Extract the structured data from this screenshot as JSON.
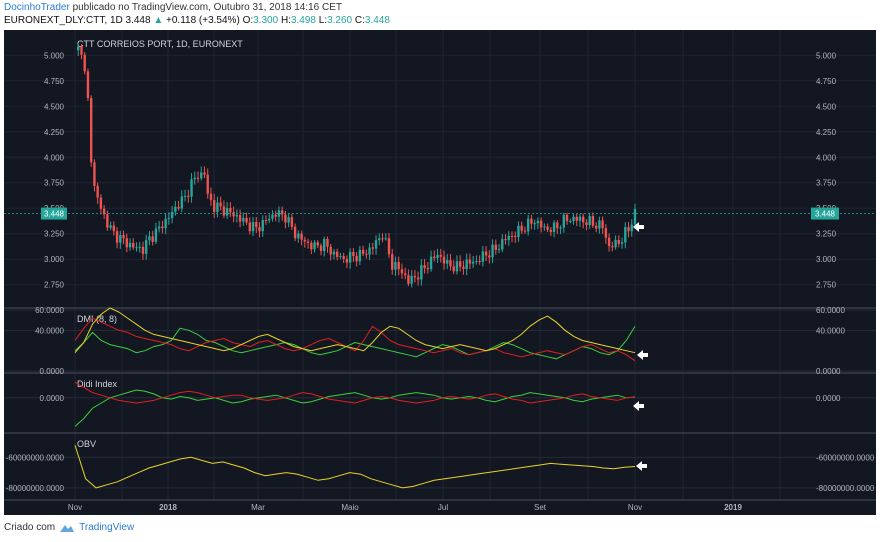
{
  "header": {
    "author": "DocinhoTrader",
    "published_text": "publicado no TradingView.com, Outubro 31, 2018 14:16 CET",
    "symbol": "EURONEXT_DLY:CTT, 1D",
    "last": "3.448",
    "change": "+0.118 (+3.54%)",
    "o_label": "O:",
    "o": "3.300",
    "h_label": "H:",
    "h": "3.498",
    "l_label": "L:",
    "l": "3.260",
    "c_label": "C:",
    "c": "3.448"
  },
  "footer": {
    "created_with": "Criado com",
    "brand": "TradingView"
  },
  "colors": {
    "background": "#131722",
    "up": "#26a69a",
    "down": "#ef5350",
    "green_line": "#3bd13b",
    "red_line": "#e02020",
    "yellow_line": "#e8d32a",
    "axis_text": "#b2b5be"
  },
  "chart_data": [
    {
      "type": "candlestick",
      "title": "CTT CORREIOS PORT, 1D, EURONEXT",
      "ylim": [
        2.6,
        5.15
      ],
      "y_ticks": [
        "2.750",
        "3.000",
        "3.250",
        "3.500",
        "3.750",
        "4.000",
        "4.250",
        "4.500",
        "4.750",
        "5.000"
      ],
      "x_ticks": [
        "Nov",
        "2018",
        "Mar",
        "Maio",
        "Jul",
        "Set",
        "Nov",
        "2019"
      ],
      "last_price_label": "3.448",
      "close_path": [
        [
          0,
          5.05
        ],
        [
          2,
          5.07
        ],
        [
          4,
          4.55
        ],
        [
          5,
          4.0
        ],
        [
          6,
          3.7
        ],
        [
          8,
          3.5
        ],
        [
          10,
          3.35
        ],
        [
          12,
          3.25
        ],
        [
          15,
          3.18
        ],
        [
          18,
          3.12
        ],
        [
          21,
          3.1
        ],
        [
          23,
          3.2
        ],
        [
          26,
          3.3
        ],
        [
          28,
          3.38
        ],
        [
          30,
          3.45
        ],
        [
          32,
          3.55
        ],
        [
          34,
          3.6
        ],
        [
          36,
          3.75
        ],
        [
          38,
          3.82
        ],
        [
          40,
          3.85
        ],
        [
          41,
          3.62
        ],
        [
          43,
          3.52
        ],
        [
          45,
          3.5
        ],
        [
          47,
          3.47
        ],
        [
          50,
          3.42
        ],
        [
          53,
          3.35
        ],
        [
          56,
          3.3
        ],
        [
          59,
          3.38
        ],
        [
          62,
          3.45
        ],
        [
          65,
          3.42
        ],
        [
          68,
          3.25
        ],
        [
          71,
          3.17
        ],
        [
          74,
          3.12
        ],
        [
          77,
          3.15
        ],
        [
          80,
          3.05
        ],
        [
          83,
          3.0
        ],
        [
          86,
          3.03
        ],
        [
          89,
          3.05
        ],
        [
          92,
          3.12
        ],
        [
          95,
          3.25
        ],
        [
          98,
          2.95
        ],
        [
          101,
          2.88
        ],
        [
          103,
          2.78
        ],
        [
          106,
          2.85
        ],
        [
          109,
          2.95
        ],
        [
          112,
          3.05
        ],
        [
          115,
          2.95
        ],
        [
          118,
          2.92
        ],
        [
          121,
          2.96
        ],
        [
          124,
          2.98
        ],
        [
          127,
          3.05
        ],
        [
          130,
          3.1
        ],
        [
          133,
          3.2
        ],
        [
          136,
          3.25
        ],
        [
          139,
          3.32
        ],
        [
          142,
          3.38
        ],
        [
          145,
          3.3
        ],
        [
          148,
          3.3
        ],
        [
          151,
          3.38
        ],
        [
          154,
          3.4
        ],
        [
          157,
          3.38
        ],
        [
          160,
          3.35
        ],
        [
          163,
          3.32
        ],
        [
          165,
          3.12
        ],
        [
          167,
          3.15
        ],
        [
          169,
          3.2
        ],
        [
          171,
          3.3
        ],
        [
          173,
          3.448
        ]
      ]
    },
    {
      "type": "line",
      "title": "DMI (8, 8)",
      "ylim": [
        0,
        60
      ],
      "y_ticks": [
        "0.0000",
        "40.0000",
        "60.0000"
      ],
      "series": [
        {
          "color": "green",
          "values": [
            20,
            28,
            38,
            30,
            26,
            24,
            22,
            18,
            20,
            24,
            26,
            30,
            42,
            40,
            36,
            30,
            28,
            24,
            20,
            18,
            20,
            22,
            24,
            26,
            28,
            26,
            22,
            18,
            16,
            18,
            20,
            24,
            28,
            26,
            24,
            22,
            20,
            18,
            16,
            14,
            18,
            22,
            26,
            24,
            20,
            16,
            18,
            20,
            24,
            28,
            26,
            22,
            18,
            16,
            14,
            12,
            16,
            20,
            24,
            22,
            18,
            16,
            20,
            30,
            44
          ]
        },
        {
          "color": "red",
          "values": [
            30,
            42,
            52,
            48,
            44,
            40,
            38,
            34,
            32,
            30,
            28,
            26,
            22,
            20,
            24,
            28,
            30,
            32,
            28,
            26,
            24,
            28,
            30,
            26,
            22,
            20,
            22,
            26,
            30,
            32,
            28,
            24,
            20,
            30,
            44,
            38,
            30,
            26,
            24,
            22,
            20,
            18,
            20,
            22,
            18,
            16,
            18,
            20,
            22,
            18,
            16,
            14,
            16,
            18,
            20,
            18,
            16,
            20,
            24,
            26,
            22,
            18,
            20,
            16,
            10
          ]
        },
        {
          "color": "yellow",
          "values": [
            18,
            28,
            46,
            56,
            62,
            58,
            52,
            46,
            40,
            36,
            34,
            32,
            30,
            28,
            26,
            24,
            22,
            20,
            22,
            26,
            30,
            34,
            36,
            32,
            28,
            24,
            22,
            20,
            22,
            24,
            26,
            24,
            22,
            20,
            28,
            38,
            44,
            42,
            36,
            30,
            26,
            24,
            22,
            24,
            26,
            24,
            22,
            20,
            22,
            26,
            30,
            36,
            44,
            50,
            54,
            48,
            40,
            34,
            30,
            28,
            26,
            24,
            22,
            20,
            18
          ]
        }
      ]
    },
    {
      "type": "line",
      "title": "Didi Index",
      "ylim": [
        -0.12,
        0.08
      ],
      "y_ticks": [
        "0.0000"
      ],
      "series": [
        {
          "color": "green",
          "values": [
            -0.11,
            -0.08,
            -0.04,
            -0.02,
            0.0,
            0.01,
            0.02,
            0.03,
            0.025,
            0.015,
            0.0,
            -0.005,
            0.005,
            0.0,
            -0.01,
            -0.005,
            0.0,
            -0.01,
            -0.02,
            -0.015,
            -0.005,
            0.0,
            0.005,
            0.01,
            0.0,
            -0.01,
            -0.02,
            -0.015,
            -0.005,
            0.005,
            0.01,
            0.015,
            0.02,
            0.01,
            0.0,
            -0.005,
            0.0,
            0.01,
            0.015,
            0.02,
            0.015,
            0.01,
            0.0,
            -0.005,
            0.0,
            0.005,
            0.0,
            -0.01,
            -0.015,
            -0.005,
            0.005,
            0.01,
            0.02,
            0.015,
            0.01,
            0.005,
            0.0,
            -0.01,
            -0.015,
            -0.005,
            0.0,
            0.005,
            0.01,
            0.0,
            0.003
          ]
        },
        {
          "color": "red",
          "values": [
            0.06,
            0.04,
            0.02,
            0.01,
            0.0,
            -0.01,
            -0.015,
            -0.02,
            -0.015,
            -0.01,
            0.0,
            0.01,
            0.02,
            0.025,
            0.02,
            0.01,
            0.0,
            0.005,
            0.01,
            0.01,
            0.0,
            -0.005,
            -0.01,
            -0.005,
            0.0,
            0.01,
            0.02,
            0.015,
            0.005,
            -0.005,
            -0.01,
            -0.015,
            -0.02,
            -0.01,
            0.0,
            0.005,
            0.0,
            -0.01,
            -0.015,
            -0.02,
            -0.015,
            -0.01,
            0.0,
            0.005,
            0.0,
            -0.005,
            0.0,
            0.01,
            0.015,
            0.005,
            -0.005,
            -0.01,
            -0.02,
            -0.015,
            -0.01,
            -0.005,
            0.0,
            0.01,
            0.015,
            0.005,
            0.0,
            -0.005,
            -0.01,
            0.0,
            0.002
          ]
        }
      ]
    },
    {
      "type": "line",
      "title": "OBV",
      "ylim": [
        -84000000,
        -48000000
      ],
      "y_ticks": [
        "-60000000.0000",
        "-80000000.0000"
      ],
      "series": [
        {
          "color": "yellow",
          "values": [
            -52000000,
            -74000000,
            -80000000,
            -78000000,
            -76000000,
            -73000000,
            -70000000,
            -67000000,
            -65000000,
            -63000000,
            -61000000,
            -60000000,
            -62000000,
            -64000000,
            -63000000,
            -65000000,
            -67000000,
            -70000000,
            -72000000,
            -71000000,
            -70000000,
            -71000000,
            -73000000,
            -75000000,
            -74000000,
            -72000000,
            -70000000,
            -71000000,
            -74000000,
            -76000000,
            -78000000,
            -80000000,
            -79000000,
            -77000000,
            -75000000,
            -74000000,
            -73000000,
            -72000000,
            -71000000,
            -70000000,
            -69000000,
            -68000000,
            -67000000,
            -66000000,
            -65000000,
            -64000000,
            -64500000,
            -65000000,
            -65500000,
            -66000000,
            -67000000,
            -67500000,
            -66500000,
            -66000000
          ]
        }
      ]
    }
  ]
}
